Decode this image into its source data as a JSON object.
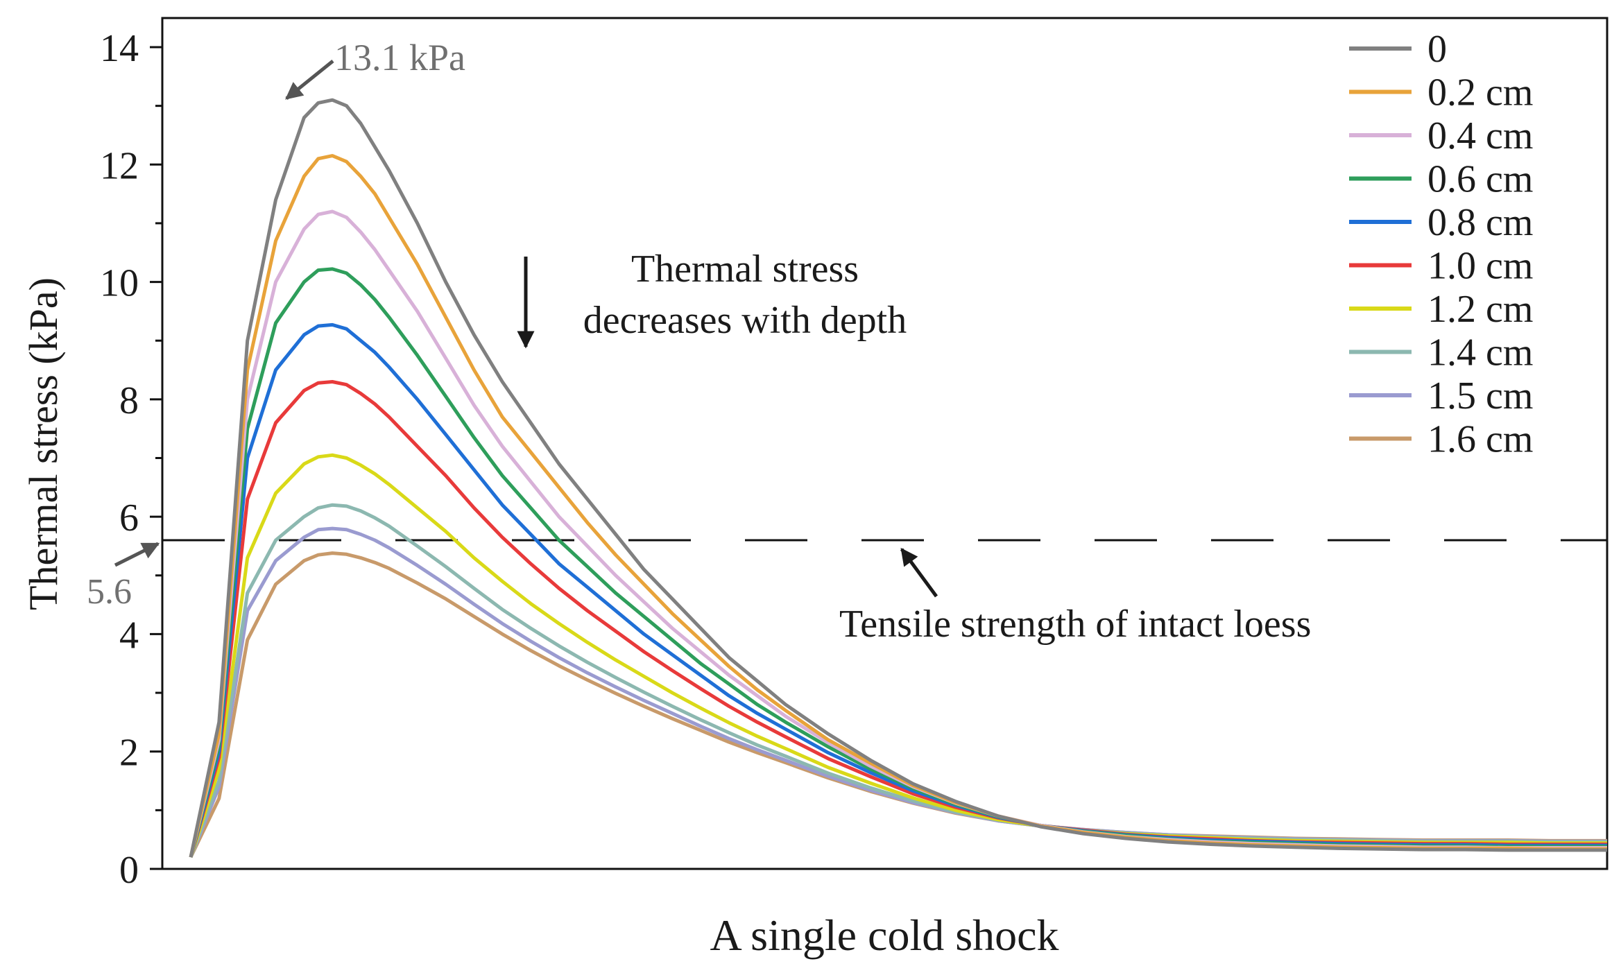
{
  "chart_data": {
    "type": "line",
    "title": "",
    "xlabel": "A single cold shock",
    "ylabel": "Thermal stress (kPa)",
    "ylim": [
      0,
      14
    ],
    "xlim": [
      0,
      100
    ],
    "yticks": [
      "0",
      "2",
      "4",
      "6",
      "8",
      "10",
      "12",
      "14"
    ],
    "grid": false,
    "legend_position": "top-right",
    "x": [
      0,
      2,
      4,
      6,
      8,
      9,
      10,
      11,
      12,
      13,
      14,
      16,
      18,
      20,
      22,
      24,
      26,
      28,
      30,
      32,
      34,
      36,
      38,
      40,
      42,
      45,
      48,
      51,
      54,
      57,
      60,
      63,
      66,
      69,
      72,
      75,
      78,
      81,
      84,
      87,
      90,
      93,
      96,
      100
    ],
    "series": [
      {
        "name": "0",
        "color": "#808080",
        "values": [
          0.2,
          2.5,
          9.0,
          11.4,
          12.8,
          13.05,
          13.1,
          13.0,
          12.7,
          12.3,
          11.9,
          11.0,
          10.0,
          9.1,
          8.3,
          7.6,
          6.9,
          6.3,
          5.7,
          5.1,
          4.6,
          4.1,
          3.6,
          3.2,
          2.8,
          2.3,
          1.85,
          1.45,
          1.15,
          0.9,
          0.72,
          0.6,
          0.52,
          0.46,
          0.42,
          0.39,
          0.37,
          0.35,
          0.34,
          0.33,
          0.33,
          0.32,
          0.32,
          0.32
        ]
      },
      {
        "name": "0.2 cm",
        "color": "#E8A33A",
        "values": [
          0.2,
          2.3,
          8.5,
          10.7,
          11.8,
          12.1,
          12.15,
          12.05,
          11.8,
          11.5,
          11.1,
          10.3,
          9.4,
          8.5,
          7.7,
          7.1,
          6.5,
          5.9,
          5.35,
          4.85,
          4.35,
          3.9,
          3.45,
          3.05,
          2.7,
          2.2,
          1.8,
          1.42,
          1.13,
          0.9,
          0.73,
          0.62,
          0.54,
          0.48,
          0.44,
          0.41,
          0.39,
          0.37,
          0.36,
          0.35,
          0.35,
          0.35,
          0.34,
          0.34
        ]
      },
      {
        "name": "0.4 cm",
        "color": "#D8B1D8",
        "values": [
          0.2,
          2.2,
          8.0,
          10.0,
          10.9,
          11.15,
          11.2,
          11.1,
          10.85,
          10.55,
          10.2,
          9.5,
          8.7,
          7.9,
          7.2,
          6.6,
          6.0,
          5.5,
          5.0,
          4.55,
          4.1,
          3.7,
          3.3,
          2.95,
          2.6,
          2.15,
          1.75,
          1.4,
          1.12,
          0.9,
          0.74,
          0.63,
          0.55,
          0.5,
          0.46,
          0.43,
          0.41,
          0.39,
          0.38,
          0.37,
          0.37,
          0.36,
          0.36,
          0.36
        ]
      },
      {
        "name": "0.6 cm",
        "color": "#2E9E5B",
        "values": [
          0.2,
          2.1,
          7.5,
          9.3,
          10.0,
          10.2,
          10.22,
          10.15,
          9.95,
          9.7,
          9.4,
          8.75,
          8.05,
          7.35,
          6.7,
          6.15,
          5.6,
          5.15,
          4.7,
          4.3,
          3.9,
          3.5,
          3.15,
          2.8,
          2.5,
          2.08,
          1.7,
          1.37,
          1.1,
          0.89,
          0.74,
          0.64,
          0.57,
          0.51,
          0.47,
          0.45,
          0.43,
          0.41,
          0.4,
          0.39,
          0.39,
          0.38,
          0.38,
          0.38
        ]
      },
      {
        "name": "0.8 cm",
        "color": "#1F6FD6",
        "values": [
          0.2,
          2.0,
          7.0,
          8.5,
          9.1,
          9.25,
          9.27,
          9.2,
          9.0,
          8.8,
          8.55,
          8.0,
          7.4,
          6.8,
          6.2,
          5.7,
          5.2,
          4.8,
          4.4,
          4.0,
          3.65,
          3.3,
          2.95,
          2.65,
          2.38,
          1.98,
          1.64,
          1.33,
          1.08,
          0.88,
          0.74,
          0.65,
          0.58,
          0.53,
          0.49,
          0.47,
          0.45,
          0.43,
          0.42,
          0.41,
          0.41,
          0.4,
          0.4,
          0.4
        ]
      },
      {
        "name": "1.0 cm",
        "color": "#E83A3A",
        "values": [
          0.2,
          1.9,
          6.3,
          7.6,
          8.15,
          8.28,
          8.3,
          8.25,
          8.1,
          7.92,
          7.7,
          7.2,
          6.7,
          6.15,
          5.65,
          5.2,
          4.78,
          4.4,
          4.05,
          3.7,
          3.38,
          3.07,
          2.77,
          2.5,
          2.25,
          1.88,
          1.57,
          1.28,
          1.05,
          0.87,
          0.74,
          0.66,
          0.59,
          0.54,
          0.51,
          0.48,
          0.46,
          0.45,
          0.44,
          0.43,
          0.43,
          0.42,
          0.42,
          0.42
        ]
      },
      {
        "name": "1.2 cm",
        "color": "#D9D918",
        "values": [
          0.2,
          1.7,
          5.3,
          6.4,
          6.9,
          7.02,
          7.05,
          7.0,
          6.88,
          6.73,
          6.55,
          6.15,
          5.75,
          5.3,
          4.9,
          4.52,
          4.18,
          3.86,
          3.56,
          3.28,
          3.0,
          2.74,
          2.49,
          2.26,
          2.05,
          1.73,
          1.46,
          1.21,
          1.0,
          0.84,
          0.73,
          0.66,
          0.6,
          0.56,
          0.53,
          0.5,
          0.48,
          0.47,
          0.46,
          0.45,
          0.45,
          0.45,
          0.44,
          0.44
        ]
      },
      {
        "name": "1.4 cm",
        "color": "#8CB8B0",
        "values": [
          0.2,
          1.5,
          4.7,
          5.6,
          6.0,
          6.15,
          6.2,
          6.18,
          6.1,
          5.98,
          5.84,
          5.5,
          5.15,
          4.78,
          4.42,
          4.1,
          3.8,
          3.52,
          3.26,
          3.01,
          2.77,
          2.54,
          2.32,
          2.11,
          1.92,
          1.63,
          1.38,
          1.16,
          0.97,
          0.83,
          0.73,
          0.66,
          0.61,
          0.57,
          0.54,
          0.52,
          0.5,
          0.49,
          0.48,
          0.47,
          0.47,
          0.47,
          0.46,
          0.46
        ]
      },
      {
        "name": "1.5 cm",
        "color": "#9A9BD0",
        "values": [
          0.2,
          1.4,
          4.4,
          5.25,
          5.65,
          5.78,
          5.8,
          5.78,
          5.7,
          5.6,
          5.47,
          5.17,
          4.85,
          4.51,
          4.18,
          3.88,
          3.6,
          3.34,
          3.1,
          2.87,
          2.65,
          2.43,
          2.22,
          2.03,
          1.85,
          1.58,
          1.34,
          1.13,
          0.96,
          0.82,
          0.73,
          0.67,
          0.62,
          0.58,
          0.55,
          0.53,
          0.51,
          0.5,
          0.49,
          0.48,
          0.48,
          0.48,
          0.47,
          0.47
        ]
      },
      {
        "name": "1.6 cm",
        "color": "#C89A6A",
        "values": [
          0.2,
          1.2,
          3.9,
          4.85,
          5.25,
          5.35,
          5.38,
          5.36,
          5.3,
          5.22,
          5.12,
          4.87,
          4.6,
          4.3,
          4.0,
          3.72,
          3.46,
          3.22,
          2.99,
          2.77,
          2.56,
          2.36,
          2.16,
          1.98,
          1.81,
          1.55,
          1.32,
          1.12,
          0.95,
          0.82,
          0.73,
          0.67,
          0.62,
          0.58,
          0.56,
          0.54,
          0.52,
          0.51,
          0.5,
          0.49,
          0.49,
          0.49,
          0.48,
          0.48
        ]
      }
    ],
    "reference_line": {
      "y": 5.6,
      "style": "dashed",
      "label": "Tensile strength of intact loess",
      "value_label": "5.6"
    },
    "annotations": [
      {
        "text": "13.1 kPa",
        "x": 10,
        "y": 13.1
      },
      {
        "text_lines": [
          "Thermal stress",
          "decreases with depth"
        ]
      }
    ]
  }
}
